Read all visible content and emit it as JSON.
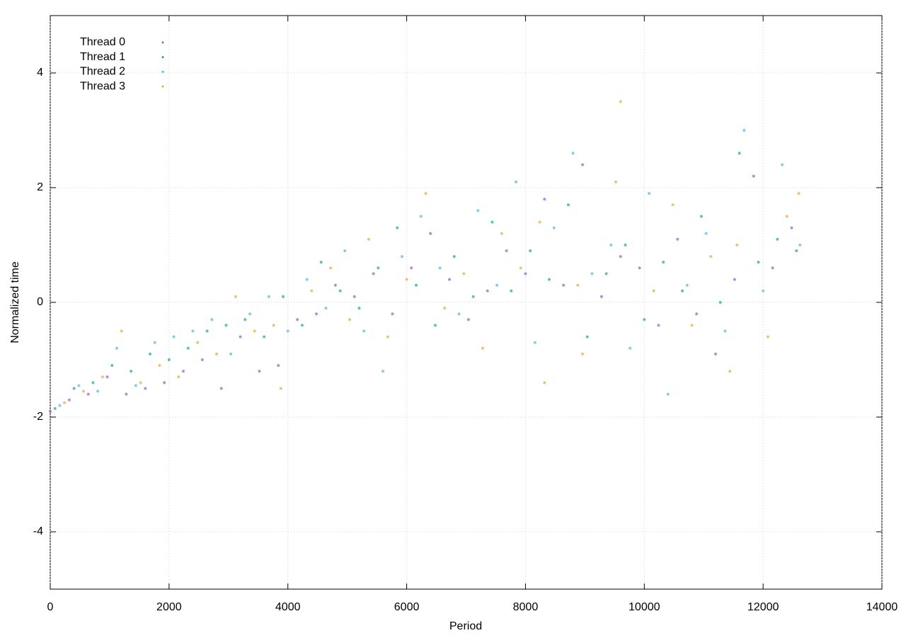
{
  "chart_data": {
    "type": "scatter",
    "x_label": "Period",
    "y_label": "Normalized time",
    "xlim": [
      0,
      14000
    ],
    "xticks": [
      0,
      2000,
      4000,
      6000,
      8000,
      10000,
      12000,
      14000
    ],
    "ylim": [
      -5,
      5
    ],
    "yticks": [
      -4,
      -2,
      0,
      2,
      4
    ],
    "grid": true,
    "legend": "top-left",
    "series": [
      {
        "name": "Thread 0",
        "color": "#9b59d0",
        "x": [
          0,
          320,
          640,
          960,
          1280,
          1600,
          1920,
          2240,
          2560,
          2880,
          3200,
          3520,
          3840,
          4160,
          4480,
          4800,
          5120,
          5440,
          5760,
          6080,
          6400,
          6720,
          7040,
          7360,
          7680,
          8000,
          8320,
          8640,
          8960,
          9280,
          9600,
          9920,
          10240,
          10560,
          10880,
          11200,
          11520,
          11840,
          12160,
          12480
        ],
        "values": [
          -1.9,
          -1.7,
          -1.6,
          -1.3,
          -1.6,
          -1.5,
          -1.4,
          -1.2,
          -1.0,
          -1.5,
          -0.6,
          -1.2,
          -1.1,
          -0.3,
          -0.2,
          0.3,
          0.1,
          0.5,
          -0.2,
          0.6,
          1.2,
          0.4,
          -0.3,
          0.2,
          0.9,
          0.5,
          1.8,
          0.3,
          2.4,
          0.1,
          0.8,
          0.6,
          -0.4,
          1.1,
          -0.2,
          -0.9,
          0.4,
          2.2,
          0.6,
          1.3
        ]
      },
      {
        "name": "Thread 1",
        "color": "#1aa88a",
        "x": [
          80,
          400,
          720,
          1040,
          1360,
          1680,
          2000,
          2320,
          2640,
          2960,
          3280,
          3600,
          3920,
          4240,
          4560,
          4880,
          5200,
          5520,
          5840,
          6160,
          6480,
          6800,
          7120,
          7440,
          7760,
          8080,
          8400,
          8720,
          9040,
          9360,
          9680,
          10000,
          10320,
          10640,
          10960,
          11280,
          11600,
          11920,
          12240,
          12560
        ],
        "values": [
          -1.85,
          -1.5,
          -1.4,
          -1.1,
          -1.2,
          -0.9,
          -1.0,
          -0.8,
          -0.5,
          -0.4,
          -0.3,
          -0.6,
          0.1,
          -0.4,
          0.7,
          0.2,
          -0.1,
          0.6,
          1.3,
          0.3,
          -0.4,
          0.8,
          0.1,
          1.4,
          0.2,
          0.9,
          0.4,
          1.7,
          -0.6,
          0.5,
          1.0,
          -0.3,
          0.7,
          0.2,
          1.5,
          0.0,
          2.6,
          0.7,
          1.1,
          0.9
        ]
      },
      {
        "name": "Thread 2",
        "color": "#56b4e9",
        "x": [
          160,
          480,
          800,
          1120,
          1440,
          1760,
          2080,
          2400,
          2720,
          3040,
          3360,
          3680,
          4000,
          4320,
          4640,
          4960,
          5280,
          5600,
          5920,
          6240,
          6560,
          6880,
          7200,
          7520,
          7840,
          8160,
          8480,
          8800,
          9120,
          9440,
          9760,
          10080,
          10400,
          10720,
          11040,
          11360,
          11680,
          12000,
          12320,
          12620
        ],
        "values": [
          -1.8,
          -1.45,
          -1.55,
          -0.8,
          -1.45,
          -0.7,
          -0.6,
          -0.5,
          -0.3,
          -0.9,
          -0.2,
          0.1,
          -0.5,
          0.4,
          -0.1,
          0.9,
          -0.5,
          -1.2,
          0.8,
          1.5,
          0.6,
          -0.2,
          1.6,
          0.3,
          2.1,
          -0.7,
          1.3,
          2.6,
          0.5,
          1.0,
          -0.8,
          1.9,
          -1.6,
          0.3,
          1.2,
          -0.5,
          3.0,
          0.2,
          2.4,
          1.0
        ]
      },
      {
        "name": "Thread 3",
        "color": "#e6ab3c",
        "x": [
          240,
          560,
          880,
          1200,
          1520,
          1840,
          2160,
          2480,
          2800,
          3120,
          3440,
          3760,
          3880,
          4400,
          4720,
          5040,
          5360,
          5680,
          6000,
          6320,
          6640,
          6960,
          7280,
          7600,
          7920,
          8240,
          8320,
          8880,
          8960,
          9520,
          9600,
          10160,
          10480,
          10800,
          11120,
          11440,
          11560,
          12080,
          12400,
          12600
        ],
        "values": [
          -1.75,
          -1.55,
          -1.3,
          -0.5,
          -1.4,
          -1.1,
          -1.3,
          -0.7,
          -0.9,
          0.1,
          -0.5,
          -0.4,
          -1.5,
          0.2,
          0.6,
          -0.3,
          1.1,
          -0.6,
          0.4,
          1.9,
          -0.1,
          0.5,
          -0.8,
          1.2,
          0.6,
          1.4,
          -1.4,
          0.3,
          -0.9,
          2.1,
          3.5,
          0.2,
          1.7,
          -0.4,
          0.8,
          -1.2,
          1.0,
          -0.6,
          1.5,
          1.9
        ]
      }
    ]
  }
}
